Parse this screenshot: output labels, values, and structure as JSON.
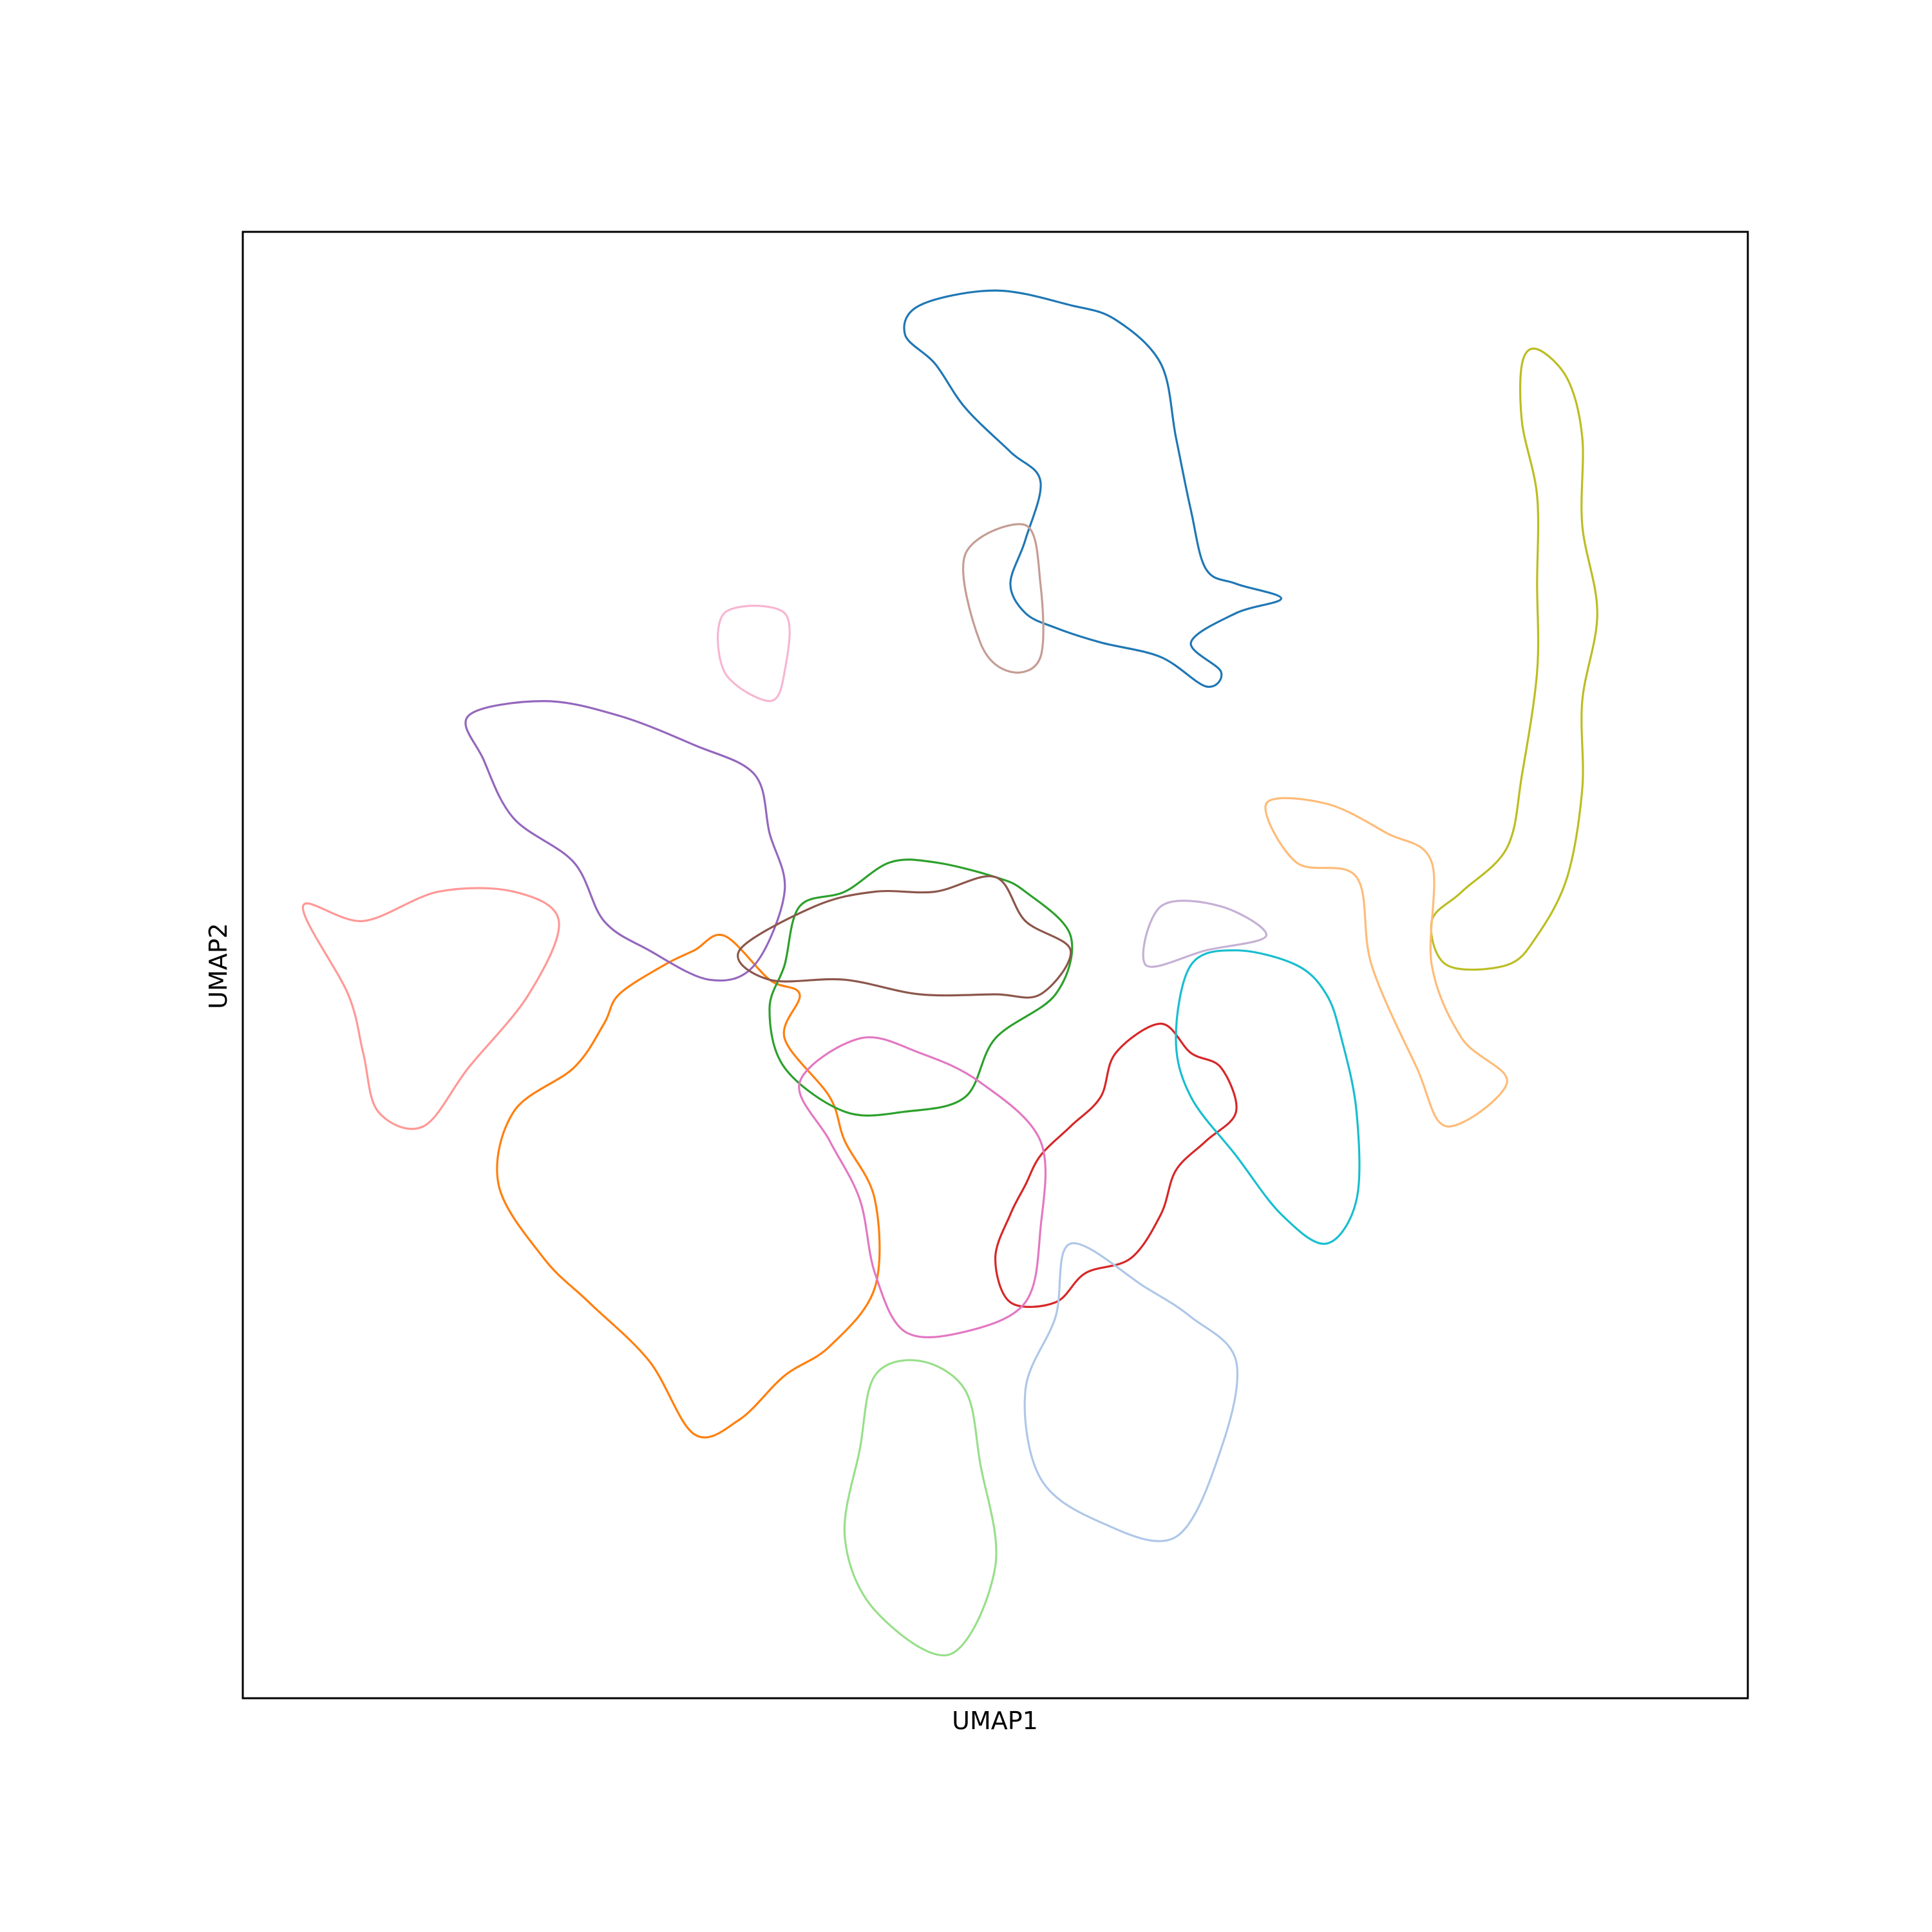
{
  "chart_data": {
    "type": "contour",
    "title": "",
    "xlabel": "UMAP1",
    "ylabel": "UMAP2",
    "xticks": [],
    "yticks": [],
    "grid": false,
    "legend": "none",
    "series": [
      {
        "color": "#1f77b4",
        "outline": [
          [
            0.45,
            0.95
          ],
          [
            0.5,
            0.96
          ],
          [
            0.55,
            0.95
          ],
          [
            0.58,
            0.94
          ],
          [
            0.61,
            0.91
          ],
          [
            0.62,
            0.86
          ],
          [
            0.63,
            0.81
          ],
          [
            0.64,
            0.77
          ],
          [
            0.66,
            0.76
          ],
          [
            0.69,
            0.75
          ],
          [
            0.66,
            0.74
          ],
          [
            0.63,
            0.72
          ],
          [
            0.65,
            0.7
          ],
          [
            0.64,
            0.69
          ],
          [
            0.61,
            0.71
          ],
          [
            0.57,
            0.72
          ],
          [
            0.54,
            0.73
          ],
          [
            0.52,
            0.74
          ],
          [
            0.51,
            0.76
          ],
          [
            0.52,
            0.79
          ],
          [
            0.53,
            0.83
          ],
          [
            0.51,
            0.85
          ],
          [
            0.48,
            0.88
          ],
          [
            0.46,
            0.91
          ],
          [
            0.44,
            0.93
          ]
        ]
      },
      {
        "color": "#ff7f0e",
        "outline": [
          [
            0.25,
            0.48
          ],
          [
            0.28,
            0.5
          ],
          [
            0.3,
            0.51
          ],
          [
            0.32,
            0.52
          ],
          [
            0.35,
            0.49
          ],
          [
            0.37,
            0.48
          ],
          [
            0.36,
            0.45
          ],
          [
            0.39,
            0.41
          ],
          [
            0.4,
            0.38
          ],
          [
            0.42,
            0.34
          ],
          [
            0.42,
            0.28
          ],
          [
            0.39,
            0.24
          ],
          [
            0.36,
            0.22
          ],
          [
            0.33,
            0.19
          ],
          [
            0.3,
            0.18
          ],
          [
            0.27,
            0.23
          ],
          [
            0.23,
            0.27
          ],
          [
            0.2,
            0.3
          ],
          [
            0.17,
            0.35
          ],
          [
            0.18,
            0.4
          ],
          [
            0.22,
            0.43
          ],
          [
            0.24,
            0.46
          ]
        ]
      },
      {
        "color": "#2ca02c",
        "outline": [
          [
            0.4,
            0.55
          ],
          [
            0.43,
            0.57
          ],
          [
            0.46,
            0.57
          ],
          [
            0.5,
            0.56
          ],
          [
            0.52,
            0.55
          ],
          [
            0.55,
            0.52
          ],
          [
            0.54,
            0.48
          ],
          [
            0.5,
            0.45
          ],
          [
            0.48,
            0.41
          ],
          [
            0.44,
            0.4
          ],
          [
            0.4,
            0.4
          ],
          [
            0.36,
            0.43
          ],
          [
            0.35,
            0.47
          ],
          [
            0.36,
            0.5
          ],
          [
            0.37,
            0.54
          ]
        ]
      },
      {
        "color": "#d62728",
        "outline": [
          [
            0.53,
            0.37
          ],
          [
            0.55,
            0.39
          ],
          [
            0.57,
            0.41
          ],
          [
            0.58,
            0.44
          ],
          [
            0.61,
            0.46
          ],
          [
            0.63,
            0.44
          ],
          [
            0.65,
            0.43
          ],
          [
            0.66,
            0.4
          ],
          [
            0.64,
            0.38
          ],
          [
            0.62,
            0.36
          ],
          [
            0.61,
            0.33
          ],
          [
            0.59,
            0.3
          ],
          [
            0.56,
            0.29
          ],
          [
            0.54,
            0.27
          ],
          [
            0.51,
            0.27
          ],
          [
            0.5,
            0.3
          ],
          [
            0.51,
            0.33
          ],
          [
            0.52,
            0.35
          ]
        ]
      },
      {
        "color": "#9467bd",
        "outline": [
          [
            0.15,
            0.67
          ],
          [
            0.2,
            0.68
          ],
          [
            0.25,
            0.67
          ],
          [
            0.3,
            0.65
          ],
          [
            0.34,
            0.63
          ],
          [
            0.35,
            0.59
          ],
          [
            0.36,
            0.55
          ],
          [
            0.34,
            0.5
          ],
          [
            0.31,
            0.49
          ],
          [
            0.27,
            0.51
          ],
          [
            0.24,
            0.53
          ],
          [
            0.22,
            0.57
          ],
          [
            0.18,
            0.6
          ],
          [
            0.16,
            0.64
          ]
        ]
      },
      {
        "color": "#8c564b",
        "outline": [
          [
            0.38,
            0.54
          ],
          [
            0.42,
            0.55
          ],
          [
            0.46,
            0.55
          ],
          [
            0.5,
            0.56
          ],
          [
            0.52,
            0.53
          ],
          [
            0.55,
            0.51
          ],
          [
            0.53,
            0.48
          ],
          [
            0.5,
            0.48
          ],
          [
            0.45,
            0.48
          ],
          [
            0.4,
            0.49
          ],
          [
            0.35,
            0.49
          ],
          [
            0.33,
            0.51
          ]
        ]
      },
      {
        "color": "#e377c2",
        "outline": [
          [
            0.37,
            0.42
          ],
          [
            0.41,
            0.45
          ],
          [
            0.45,
            0.44
          ],
          [
            0.49,
            0.42
          ],
          [
            0.53,
            0.38
          ],
          [
            0.53,
            0.32
          ],
          [
            0.52,
            0.27
          ],
          [
            0.48,
            0.25
          ],
          [
            0.44,
            0.25
          ],
          [
            0.42,
            0.29
          ],
          [
            0.41,
            0.34
          ],
          [
            0.39,
            0.38
          ]
        ]
      },
      {
        "color": "#7f7f7f",
        "outline": []
      },
      {
        "color": "#bcbd22",
        "outline": [
          [
            0.86,
            0.92
          ],
          [
            0.88,
            0.9
          ],
          [
            0.89,
            0.86
          ],
          [
            0.89,
            0.8
          ],
          [
            0.9,
            0.74
          ],
          [
            0.89,
            0.68
          ],
          [
            0.89,
            0.62
          ],
          [
            0.88,
            0.56
          ],
          [
            0.86,
            0.52
          ],
          [
            0.84,
            0.5
          ],
          [
            0.8,
            0.5
          ],
          [
            0.79,
            0.53
          ],
          [
            0.81,
            0.55
          ],
          [
            0.84,
            0.58
          ],
          [
            0.85,
            0.63
          ],
          [
            0.86,
            0.7
          ],
          [
            0.86,
            0.76
          ],
          [
            0.86,
            0.82
          ],
          [
            0.85,
            0.87
          ],
          [
            0.85,
            0.91
          ]
        ]
      },
      {
        "color": "#17becf",
        "outline": [
          [
            0.63,
            0.5
          ],
          [
            0.66,
            0.51
          ],
          [
            0.7,
            0.5
          ],
          [
            0.72,
            0.48
          ],
          [
            0.73,
            0.45
          ],
          [
            0.74,
            0.4
          ],
          [
            0.74,
            0.34
          ],
          [
            0.72,
            0.31
          ],
          [
            0.69,
            0.33
          ],
          [
            0.66,
            0.37
          ],
          [
            0.63,
            0.41
          ],
          [
            0.62,
            0.45
          ]
        ]
      },
      {
        "color": "#aec7e8",
        "outline": [
          [
            0.55,
            0.31
          ],
          [
            0.6,
            0.28
          ],
          [
            0.63,
            0.26
          ],
          [
            0.66,
            0.23
          ],
          [
            0.65,
            0.17
          ],
          [
            0.62,
            0.11
          ],
          [
            0.57,
            0.12
          ],
          [
            0.53,
            0.15
          ],
          [
            0.52,
            0.21
          ],
          [
            0.54,
            0.26
          ]
        ]
      },
      {
        "color": "#ffbb78",
        "outline": [
          [
            0.68,
            0.61
          ],
          [
            0.72,
            0.61
          ],
          [
            0.76,
            0.59
          ],
          [
            0.79,
            0.57
          ],
          [
            0.79,
            0.5
          ],
          [
            0.81,
            0.45
          ],
          [
            0.84,
            0.42
          ],
          [
            0.8,
            0.39
          ],
          [
            0.78,
            0.43
          ],
          [
            0.75,
            0.5
          ],
          [
            0.74,
            0.56
          ],
          [
            0.7,
            0.57
          ]
        ]
      },
      {
        "color": "#98df8a",
        "outline": [
          [
            0.42,
            0.22
          ],
          [
            0.45,
            0.23
          ],
          [
            0.48,
            0.21
          ],
          [
            0.49,
            0.16
          ],
          [
            0.5,
            0.09
          ],
          [
            0.47,
            0.03
          ],
          [
            0.42,
            0.06
          ],
          [
            0.4,
            0.11
          ],
          [
            0.41,
            0.17
          ]
        ]
      },
      {
        "color": "#ff9896",
        "outline": [
          [
            0.04,
            0.54
          ],
          [
            0.08,
            0.53
          ],
          [
            0.13,
            0.55
          ],
          [
            0.18,
            0.55
          ],
          [
            0.21,
            0.53
          ],
          [
            0.19,
            0.48
          ],
          [
            0.15,
            0.43
          ],
          [
            0.12,
            0.39
          ],
          [
            0.09,
            0.4
          ],
          [
            0.08,
            0.44
          ],
          [
            0.07,
            0.48
          ]
        ]
      },
      {
        "color": "#c5b0d5",
        "outline": [
          [
            0.61,
            0.54
          ],
          [
            0.65,
            0.54
          ],
          [
            0.68,
            0.52
          ],
          [
            0.64,
            0.51
          ],
          [
            0.6,
            0.5
          ]
        ]
      },
      {
        "color": "#c49c94",
        "outline": [
          [
            0.48,
            0.78
          ],
          [
            0.52,
            0.8
          ],
          [
            0.53,
            0.76
          ],
          [
            0.53,
            0.71
          ],
          [
            0.51,
            0.7
          ],
          [
            0.49,
            0.72
          ]
        ]
      },
      {
        "color": "#f7b6d2",
        "outline": [
          [
            0.32,
            0.74
          ],
          [
            0.36,
            0.74
          ],
          [
            0.36,
            0.7
          ],
          [
            0.35,
            0.68
          ],
          [
            0.32,
            0.7
          ]
        ]
      }
    ]
  }
}
